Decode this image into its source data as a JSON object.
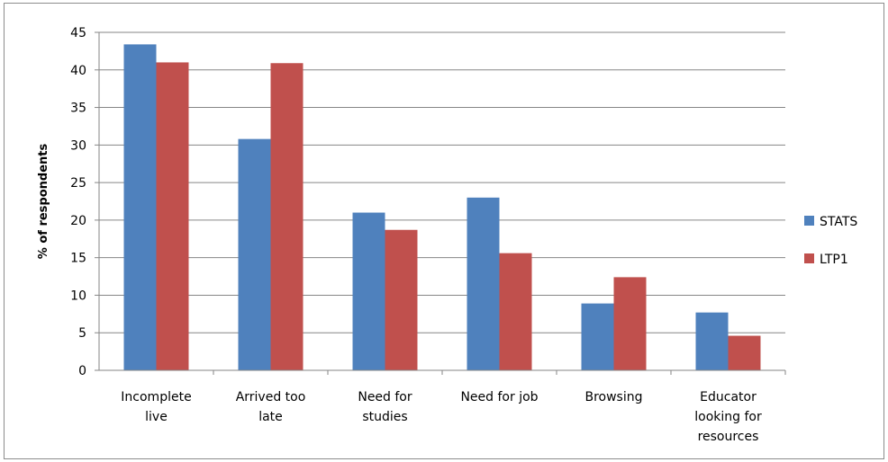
{
  "chart_data": {
    "type": "bar",
    "categories": [
      [
        "Incomplete",
        "live"
      ],
      [
        "Arrived too",
        "late"
      ],
      [
        "Need for",
        "studies"
      ],
      [
        "Need for job"
      ],
      [
        "Browsing"
      ],
      [
        "Educator",
        "looking for",
        "resources"
      ]
    ],
    "series": [
      {
        "name": "STATS",
        "color": "#4f81bd",
        "values": [
          43.4,
          30.8,
          21.0,
          23.0,
          8.9,
          7.7
        ]
      },
      {
        "name": "LTP1",
        "color": "#c0504d",
        "values": [
          41.0,
          40.9,
          18.7,
          15.6,
          12.4,
          4.6
        ]
      }
    ],
    "ylabel": "% of respondents",
    "ylim": [
      0,
      45
    ],
    "yticks": [
      0,
      5,
      10,
      15,
      20,
      25,
      30,
      35,
      40,
      45
    ],
    "grid": true,
    "legend": "right"
  }
}
